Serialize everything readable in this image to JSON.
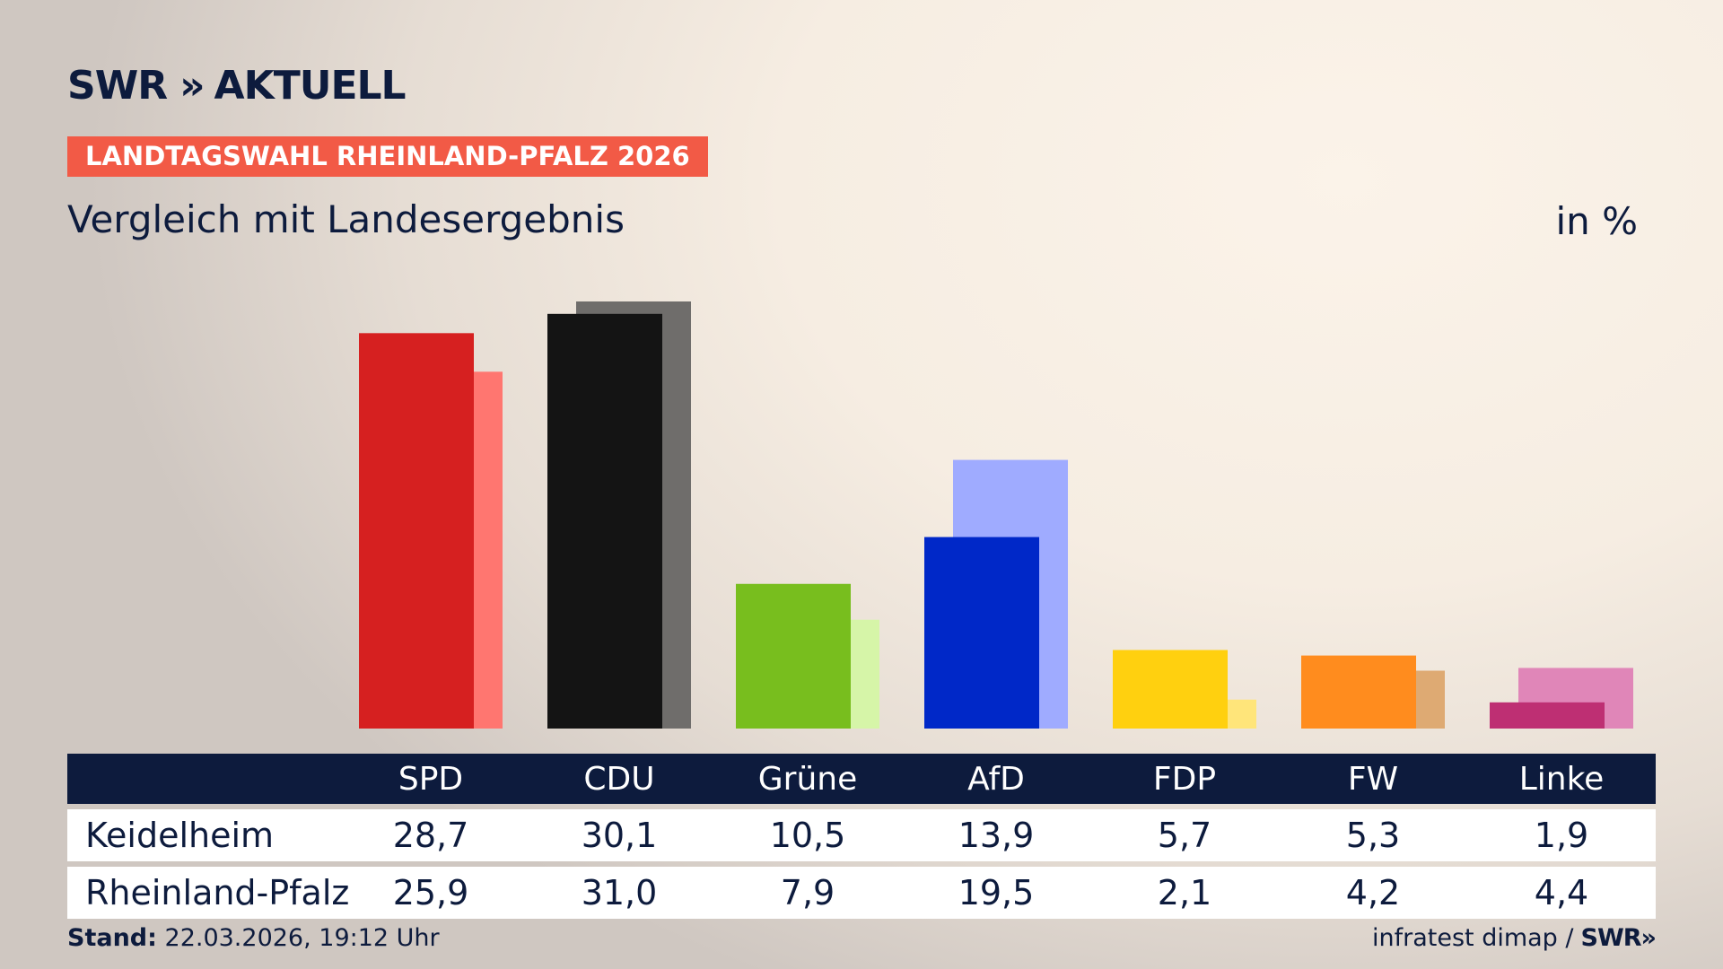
{
  "header": {
    "logo_swr": "SWR",
    "logo_chevrons": "»",
    "logo_aktuell": "AKTUELL",
    "badge": "LANDTAGSWAHL RHEINLAND-PFALZ 2026",
    "subtitle": "Vergleich mit Landesergebnis",
    "unit": "in %"
  },
  "chart_data": {
    "type": "bar",
    "categories": [
      "SPD",
      "CDU",
      "Grüne",
      "AfD",
      "FDP",
      "FW",
      "Linke"
    ],
    "series": [
      {
        "name": "Keidelheim",
        "values": [
          28.7,
          30.1,
          10.5,
          13.9,
          5.7,
          5.3,
          1.9
        ]
      },
      {
        "name": "Rheinland-Pfalz",
        "values": [
          25.9,
          31.0,
          7.9,
          19.5,
          2.1,
          4.2,
          4.4
        ]
      }
    ],
    "value_labels": {
      "Keidelheim": [
        "28,7",
        "30,1",
        "10,5",
        "13,9",
        "5,7",
        "5,3",
        "1,9"
      ],
      "Rheinland-Pfalz": [
        "25,9",
        "31,0",
        "7,9",
        "19,5",
        "2,1",
        "4,2",
        "4,4"
      ]
    },
    "colors_primary": [
      "#d62020",
      "#141414",
      "#78be1e",
      "#0028c8",
      "#ffd00f",
      "#ff8c1e",
      "#be2f73"
    ],
    "colors_secondary": [
      "#ff7670",
      "#6f6d6b",
      "#d6f5a8",
      "#9fabff",
      "#ffe57a",
      "#deaa73",
      "#e086b8"
    ],
    "ylim": [
      0,
      31.0
    ],
    "grid": false
  },
  "footer": {
    "stand_label": "Stand:",
    "stand_value": "22.03.2026, 19:12 Uhr",
    "source": "infratest dimap /",
    "source_logo": "SWR"
  }
}
